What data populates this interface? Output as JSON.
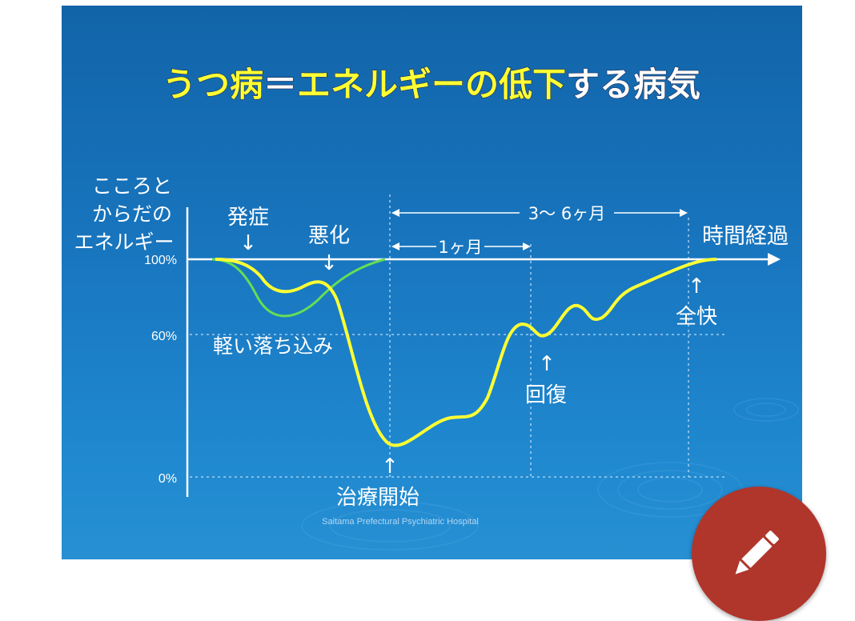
{
  "title": {
    "part1": "うつ病",
    "part2": "＝",
    "part3": "エネルギーの低下",
    "part4": "する病気"
  },
  "yaxis": {
    "label_line1": "こころと",
    "label_line2": "からだの",
    "label_line3": "エネルギー",
    "ticks": [
      "100%",
      "60%",
      "0%"
    ]
  },
  "xaxis": {
    "label": "時間経過"
  },
  "annotations": {
    "onset": "発症",
    "worsening": "悪化",
    "mild": "軽い落ち込み",
    "treatment": "治療開始",
    "recovery": "回復",
    "full_recovery": "全快",
    "one_month": "1ヶ月",
    "three_six_months": "3～ 6ヶ月",
    "arrow_down": "↓",
    "arrow_up": "↑"
  },
  "credit": "Saitama Prefectural Psychiatric Hospital",
  "colors": {
    "yellow_curve": "#ffff33",
    "green_curve": "#66dd55",
    "slide_bg": "#1876bf",
    "fab": "#b0352b"
  },
  "fab_icon": "pencil-icon"
}
